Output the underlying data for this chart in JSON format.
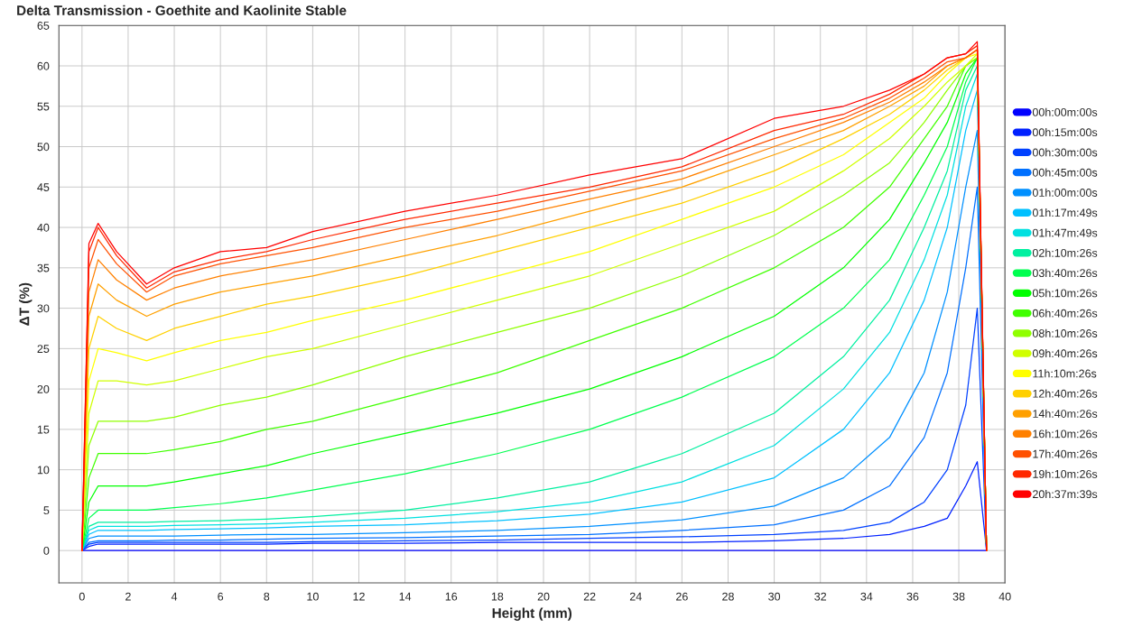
{
  "chart_data": {
    "type": "line",
    "title": "Delta Transmission - Goethite and Kaolinite Stable",
    "xlabel": "Height (mm)",
    "ylabel": "ΔT (%)",
    "x": [
      0,
      0.3,
      0.7,
      1.5,
      2.8,
      4,
      6,
      8,
      10,
      14,
      18,
      22,
      26,
      30,
      33,
      35,
      36.5,
      37.5,
      38.3,
      38.8,
      39.2
    ],
    "xlim": [
      -1,
      40
    ],
    "xticks": [
      0,
      2,
      4,
      6,
      8,
      10,
      12,
      14,
      16,
      18,
      20,
      22,
      24,
      26,
      28,
      30,
      32,
      34,
      36,
      38,
      40
    ],
    "ylim": [
      -4,
      65
    ],
    "yticks": [
      0,
      5,
      10,
      15,
      20,
      25,
      30,
      35,
      40,
      45,
      50,
      55,
      60,
      65
    ],
    "grid": true,
    "legend": "right",
    "marker": "none",
    "line_style": "solid",
    "series": [
      {
        "name": "00h:00m:00s",
        "color": "#0000ff",
        "values": [
          0,
          0,
          0,
          0,
          0,
          0,
          0,
          0,
          0,
          0,
          0,
          0,
          0,
          0,
          0,
          0,
          0,
          0,
          0,
          0,
          0
        ]
      },
      {
        "name": "00h:15m:00s",
        "color": "#0020ff",
        "values": [
          0,
          0.5,
          0.8,
          0.8,
          0.8,
          0.8,
          0.8,
          0.8,
          0.9,
          0.9,
          1,
          1,
          1,
          1.2,
          1.5,
          2,
          3,
          4,
          8,
          11,
          0
        ]
      },
      {
        "name": "00h:30m:00s",
        "color": "#0040ff",
        "values": [
          0,
          0.8,
          1,
          1,
          1,
          1,
          1,
          1,
          1.1,
          1.2,
          1.3,
          1.5,
          1.7,
          2,
          2.5,
          3.5,
          6,
          10,
          18,
          30,
          0
        ]
      },
      {
        "name": "00h:45m:00s",
        "color": "#0070ff",
        "values": [
          0,
          1,
          1.2,
          1.2,
          1.2,
          1.3,
          1.3,
          1.4,
          1.5,
          1.6,
          1.8,
          2,
          2.5,
          3.2,
          5,
          8,
          14,
          22,
          35,
          45,
          0
        ]
      },
      {
        "name": "01h:00m:00s",
        "color": "#0090ff",
        "values": [
          0,
          1.5,
          1.8,
          1.8,
          1.8,
          1.8,
          1.9,
          2,
          2,
          2.2,
          2.5,
          3,
          3.8,
          5.5,
          9,
          14,
          22,
          32,
          45,
          52,
          0
        ]
      },
      {
        "name": "01h:17m:49s",
        "color": "#00c0ff",
        "values": [
          0,
          2,
          2.5,
          2.5,
          2.5,
          2.6,
          2.7,
          2.8,
          3,
          3.2,
          3.7,
          4.5,
          6,
          9,
          15,
          22,
          31,
          40,
          52,
          57,
          0
        ]
      },
      {
        "name": "01h:47m:49s",
        "color": "#00e0e0",
        "values": [
          0,
          2.5,
          3,
          3,
          3,
          3.1,
          3.2,
          3.3,
          3.5,
          4,
          4.8,
          6,
          8.5,
          13,
          20,
          27,
          36,
          44,
          55,
          59,
          0
        ]
      },
      {
        "name": "02h:10m:26s",
        "color": "#00f0a0",
        "values": [
          0,
          3,
          3.5,
          3.5,
          3.5,
          3.6,
          3.7,
          3.9,
          4.2,
          5,
          6.5,
          8.5,
          12,
          17,
          24,
          31,
          40,
          47,
          57,
          60,
          0
        ]
      },
      {
        "name": "03h:40m:26s",
        "color": "#00ff50",
        "values": [
          0,
          4,
          5,
          5,
          5,
          5.3,
          5.8,
          6.5,
          7.5,
          9.5,
          12,
          15,
          19,
          24,
          30,
          36,
          44,
          50,
          58,
          61,
          0
        ]
      },
      {
        "name": "05h:10m:26s",
        "color": "#00ff00",
        "values": [
          0,
          6,
          8,
          8,
          8,
          8.5,
          9.5,
          10.5,
          12,
          14.5,
          17,
          20,
          24,
          29,
          35,
          41,
          48,
          53,
          59,
          61,
          0
        ]
      },
      {
        "name": "06h:40m:26s",
        "color": "#40ff00",
        "values": [
          0,
          9,
          12,
          12,
          12,
          12.5,
          13.5,
          15,
          16,
          19,
          22,
          26,
          30,
          35,
          40,
          45,
          51,
          55,
          60,
          61,
          0
        ]
      },
      {
        "name": "08h:10m:26s",
        "color": "#90ff00",
        "values": [
          0,
          13,
          16,
          16,
          16,
          16.5,
          18,
          19,
          20.5,
          24,
          27,
          30,
          34,
          39,
          44,
          48,
          53,
          57,
          60,
          61,
          0
        ]
      },
      {
        "name": "09h:40m:26s",
        "color": "#d0ff00",
        "values": [
          0,
          17,
          21,
          21,
          20.5,
          21,
          22.5,
          24,
          25,
          28,
          31,
          34,
          38,
          42,
          47,
          51,
          55,
          58,
          60,
          61.5,
          0
        ]
      },
      {
        "name": "11h:10m:26s",
        "color": "#ffff00",
        "values": [
          0,
          21,
          25,
          24.5,
          23.5,
          24.5,
          26,
          27,
          28.5,
          31,
          34,
          37,
          41,
          45,
          49,
          53,
          56,
          59,
          61,
          61.5,
          0
        ]
      },
      {
        "name": "12h:40m:26s",
        "color": "#ffd000",
        "values": [
          0,
          25,
          29,
          27.5,
          26,
          27.5,
          29,
          30.5,
          31.5,
          34,
          37,
          40,
          43,
          47,
          51,
          54,
          57,
          59.5,
          61,
          62,
          0
        ]
      },
      {
        "name": "14h:40m:26s",
        "color": "#ffa000",
        "values": [
          0,
          29,
          33,
          31,
          29,
          30.5,
          32,
          33,
          34,
          36.5,
          39,
          42,
          45,
          49,
          52,
          55,
          57.5,
          60,
          61,
          62,
          0
        ]
      },
      {
        "name": "16h:10m:26s",
        "color": "#ff8000",
        "values": [
          0,
          32,
          36,
          33.5,
          31,
          32.5,
          34,
          35,
          36,
          38.5,
          41,
          43.5,
          46,
          50,
          53,
          55.5,
          58,
          60,
          61,
          62,
          0
        ]
      },
      {
        "name": "17h:40m:26s",
        "color": "#ff5000",
        "values": [
          0,
          35,
          38.5,
          35.5,
          32,
          34,
          35.5,
          36.5,
          37.5,
          40,
          42,
          44.5,
          47,
          51,
          53.5,
          56,
          58.5,
          60.5,
          61,
          62,
          0
        ]
      },
      {
        "name": "19h:10m:26s",
        "color": "#ff2800",
        "values": [
          0,
          37,
          40,
          36.5,
          32.5,
          34.5,
          36,
          37,
          38.5,
          41,
          43,
          45,
          47.5,
          52,
          54,
          56.5,
          59,
          61,
          61.5,
          62.5,
          0
        ]
      },
      {
        "name": "20h:37m:39s",
        "color": "#ff0000",
        "values": [
          0,
          38,
          40.5,
          37,
          33,
          35,
          37,
          37.5,
          39.5,
          42,
          44,
          46.5,
          48.5,
          53.5,
          55,
          57,
          59,
          61,
          61.5,
          63,
          0
        ]
      }
    ]
  }
}
